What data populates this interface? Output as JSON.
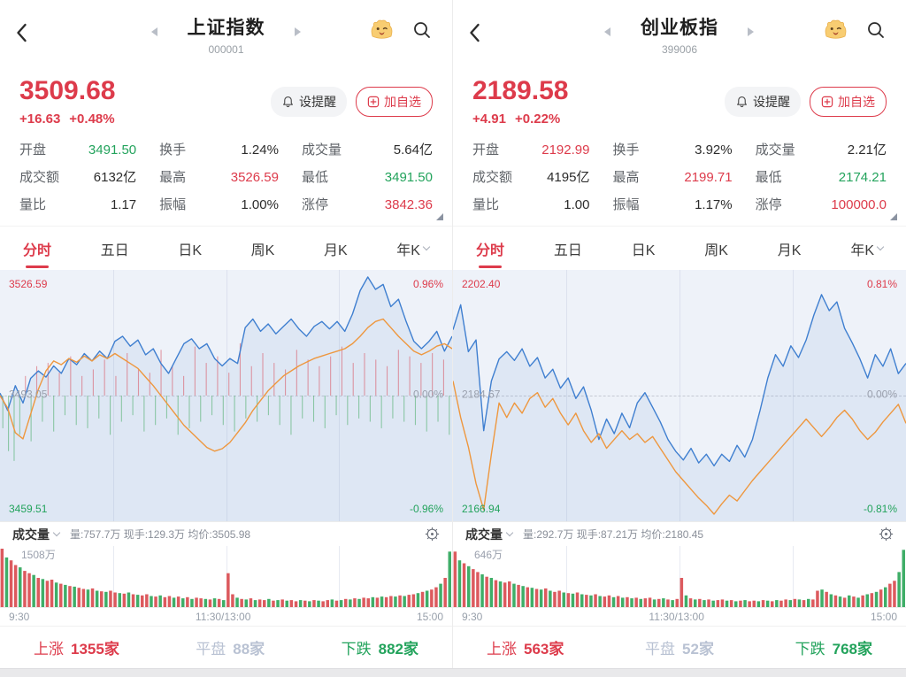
{
  "colors": {
    "red": "#dd3b4b",
    "green": "#23a35c",
    "blue": "#3f7fd0",
    "orange": "#ee973e",
    "flat": "#b9c2d3",
    "vol_red": "#dc5a5e",
    "vol_green": "#3fae68"
  },
  "panels": [
    {
      "title": "上证指数",
      "code": "000001",
      "price": "3509.68",
      "change": "+16.63",
      "change_pct": "+0.48%",
      "alert_label": "设提醒",
      "watch_label": "加自选",
      "stats": [
        {
          "label": "开盘",
          "value": "3491.50",
          "color": "green"
        },
        {
          "label": "换手",
          "value": "1.24%",
          "color": "dark"
        },
        {
          "label": "成交量",
          "value": "5.64亿",
          "color": "dark"
        },
        {
          "label": "成交额",
          "value": "6132亿",
          "color": "dark"
        },
        {
          "label": "最高",
          "value": "3526.59",
          "color": "red"
        },
        {
          "label": "最低",
          "value": "3491.50",
          "color": "green"
        },
        {
          "label": "量比",
          "value": "1.17",
          "color": "dark"
        },
        {
          "label": "振幅",
          "value": "1.00%",
          "color": "dark"
        },
        {
          "label": "涨停",
          "value": "3842.36",
          "color": "red"
        }
      ],
      "tabs": [
        "分时",
        "五日",
        "日K",
        "周K",
        "月K",
        "年K"
      ],
      "active_tab": 0,
      "chart": {
        "type": "line",
        "high_label": "3526.59",
        "high_pct": "0.96%",
        "mid_label": "3493.05",
        "mid_pct": "0.00%",
        "low_label": "3459.51",
        "low_pct": "-0.96%",
        "range_pct": 0.96,
        "price_line": [
          0.02,
          -0.12,
          0.08,
          -0.06,
          0.14,
          0.2,
          0.15,
          0.24,
          0.18,
          0.3,
          0.25,
          0.34,
          0.28,
          0.36,
          0.3,
          0.44,
          0.48,
          0.4,
          0.45,
          0.33,
          0.38,
          0.26,
          0.18,
          0.3,
          0.42,
          0.46,
          0.38,
          0.42,
          0.3,
          0.24,
          0.3,
          0.26,
          0.55,
          0.62,
          0.52,
          0.58,
          0.5,
          0.56,
          0.62,
          0.54,
          0.48,
          0.56,
          0.6,
          0.54,
          0.6,
          0.52,
          0.66,
          0.85,
          0.96,
          0.86,
          0.9,
          0.72,
          0.78,
          0.6,
          0.44,
          0.38,
          0.44,
          0.52,
          0.36,
          0.48
        ],
        "avg_line": [
          0.0,
          -0.1,
          -0.3,
          -0.35,
          -0.15,
          0.05,
          0.2,
          0.28,
          0.25,
          0.3,
          0.27,
          0.32,
          0.28,
          0.33,
          0.3,
          0.34,
          0.3,
          0.26,
          0.22,
          0.15,
          0.08,
          0.0,
          -0.08,
          -0.16,
          -0.24,
          -0.3,
          -0.36,
          -0.42,
          -0.45,
          -0.43,
          -0.38,
          -0.3,
          -0.22,
          -0.12,
          -0.04,
          0.04,
          0.1,
          0.16,
          0.2,
          0.24,
          0.27,
          0.3,
          0.32,
          0.34,
          0.36,
          0.38,
          0.42,
          0.48,
          0.55,
          0.6,
          0.62,
          0.55,
          0.48,
          0.42,
          0.36,
          0.33,
          0.36,
          0.4,
          0.42,
          0.38
        ],
        "ticks": [
          -0.5,
          -0.85,
          -1.0,
          -0.6,
          0.3,
          -0.7,
          0.45,
          -0.4,
          0.5,
          -0.55,
          0.35,
          -0.3,
          0.6,
          -0.45,
          0.3,
          -0.5,
          0.4,
          -0.35,
          0.55,
          -0.6,
          0.3,
          -0.4,
          0.65,
          -0.3,
          0.4,
          -0.55,
          0.35,
          -0.45,
          0.7,
          -0.35,
          0.45,
          -0.6,
          0.3,
          -0.5,
          0.75,
          -0.4,
          0.5,
          -0.3,
          0.6,
          -0.45,
          0.35,
          -0.55,
          0.8,
          -0.35,
          0.45,
          -0.4,
          0.65,
          -0.3,
          0.5,
          -0.45,
          0.4,
          -0.6,
          0.7,
          -0.35,
          0.55,
          -0.4,
          0.45,
          -0.5,
          0.6,
          -0.3,
          0.75,
          -0.45,
          0.5,
          -0.35,
          0.65,
          -0.4,
          0.55,
          -0.5,
          0.45,
          -0.35,
          0.7,
          -0.4,
          0.6,
          -0.45,
          0.5,
          -0.55,
          0.65,
          -0.4,
          0.55,
          -0.6
        ]
      },
      "volume": {
        "label": "成交量",
        "stats_text": "量:757.7万 现手:129.3万 均价:3505.98",
        "max_label": "1508万",
        "bars": [
          1.0,
          -0.85,
          0.8,
          0.72,
          -0.68,
          0.62,
          0.58,
          -0.55,
          0.5,
          -0.48,
          0.45,
          0.47,
          -0.42,
          0.4,
          -0.38,
          0.36,
          -0.35,
          0.33,
          0.31,
          -0.3,
          0.32,
          -0.28,
          0.27,
          -0.26,
          0.28,
          0.25,
          -0.24,
          0.23,
          -0.25,
          0.22,
          -0.21,
          0.2,
          0.22,
          -0.19,
          0.18,
          -0.2,
          0.17,
          0.19,
          -0.16,
          0.18,
          -0.15,
          0.17,
          -0.14,
          0.16,
          0.15,
          -0.14,
          0.13,
          -0.15,
          0.14,
          -0.12,
          0.58,
          0.22,
          -0.16,
          0.14,
          -0.13,
          0.15,
          -0.12,
          0.13,
          0.12,
          -0.14,
          0.11,
          -0.12,
          0.13,
          -0.11,
          0.12,
          0.1,
          -0.12,
          0.11,
          -0.1,
          0.12,
          -0.11,
          0.1,
          0.12,
          -0.13,
          0.11,
          -0.12,
          0.14,
          -0.13,
          0.15,
          -0.14,
          0.16,
          0.15,
          -0.17,
          0.16,
          -0.18,
          0.17,
          0.19,
          -0.18,
          0.2,
          -0.19,
          0.21,
          0.22,
          -0.24,
          0.26,
          -0.28,
          0.3,
          0.34,
          -0.4,
          0.5,
          -0.95
        ]
      },
      "time_axis": [
        "9:30",
        "11:30/13:00",
        "15:00"
      ],
      "breadth": {
        "up_label": "上涨",
        "up_count": "1355家",
        "flat_label": "平盘",
        "flat_count": "88家",
        "down_label": "下跌",
        "down_count": "882家"
      }
    },
    {
      "title": "创业板指",
      "code": "399006",
      "price": "2189.58",
      "change": "+4.91",
      "change_pct": "+0.22%",
      "alert_label": "设提醒",
      "watch_label": "加自选",
      "stats": [
        {
          "label": "开盘",
          "value": "2192.99",
          "color": "red"
        },
        {
          "label": "换手",
          "value": "3.92%",
          "color": "dark"
        },
        {
          "label": "成交量",
          "value": "2.21亿",
          "color": "dark"
        },
        {
          "label": "成交额",
          "value": "4195亿",
          "color": "dark"
        },
        {
          "label": "最高",
          "value": "2199.71",
          "color": "red"
        },
        {
          "label": "最低",
          "value": "2174.21",
          "color": "green"
        },
        {
          "label": "量比",
          "value": "1.00",
          "color": "dark"
        },
        {
          "label": "振幅",
          "value": "1.17%",
          "color": "dark"
        },
        {
          "label": "涨停",
          "value": "100000.0",
          "color": "red"
        }
      ],
      "tabs": [
        "分时",
        "五日",
        "日K",
        "周K",
        "月K",
        "年K"
      ],
      "active_tab": 0,
      "chart": {
        "type": "line",
        "high_label": "2202.40",
        "high_pct": "0.81%",
        "mid_label": "2184.67",
        "mid_pct": "0.00%",
        "low_label": "2166.94",
        "low_pct": "-0.81%",
        "range_pct": 0.81,
        "price_line": [
          0.45,
          0.62,
          0.3,
          0.38,
          -0.24,
          0.1,
          0.25,
          0.3,
          0.24,
          0.32,
          0.2,
          0.26,
          0.12,
          0.18,
          0.05,
          0.12,
          -0.02,
          0.06,
          -0.1,
          -0.3,
          -0.16,
          -0.26,
          -0.12,
          -0.22,
          -0.05,
          0.02,
          -0.08,
          -0.18,
          -0.3,
          -0.38,
          -0.44,
          -0.36,
          -0.46,
          -0.4,
          -0.48,
          -0.4,
          -0.45,
          -0.34,
          -0.42,
          -0.3,
          -0.1,
          0.12,
          0.28,
          0.2,
          0.34,
          0.26,
          0.38,
          0.55,
          0.69,
          0.58,
          0.64,
          0.46,
          0.36,
          0.25,
          0.12,
          0.28,
          0.2,
          0.32,
          0.15,
          0.22
        ],
        "avg_line": [
          0.1,
          -0.15,
          -0.35,
          -0.6,
          -0.78,
          -0.4,
          -0.05,
          -0.15,
          -0.05,
          -0.12,
          -0.02,
          0.02,
          -0.08,
          -0.02,
          -0.12,
          -0.2,
          -0.12,
          -0.24,
          -0.32,
          -0.26,
          -0.36,
          -0.3,
          -0.24,
          -0.3,
          -0.26,
          -0.32,
          -0.28,
          -0.36,
          -0.44,
          -0.52,
          -0.58,
          -0.64,
          -0.7,
          -0.75,
          -0.81,
          -0.74,
          -0.68,
          -0.72,
          -0.65,
          -0.58,
          -0.52,
          -0.46,
          -0.4,
          -0.34,
          -0.28,
          -0.22,
          -0.16,
          -0.22,
          -0.28,
          -0.22,
          -0.15,
          -0.1,
          -0.16,
          -0.24,
          -0.3,
          -0.25,
          -0.18,
          -0.12,
          -0.06,
          -0.19
        ],
        "ticks": []
      },
      "volume": {
        "label": "成交量",
        "stats_text": "量:292.7万 现手:87.21万 均价:2180.45",
        "max_label": "646万",
        "bars": [
          0.95,
          -0.8,
          0.75,
          -0.7,
          0.65,
          0.6,
          -0.56,
          0.52,
          -0.5,
          0.46,
          -0.44,
          0.42,
          0.44,
          -0.4,
          0.38,
          -0.36,
          0.34,
          -0.33,
          0.31,
          -0.3,
          0.32,
          -0.28,
          0.26,
          0.28,
          -0.25,
          0.24,
          -0.23,
          0.25,
          -0.22,
          0.21,
          -0.2,
          0.22,
          -0.19,
          0.18,
          0.2,
          -0.17,
          0.19,
          -0.16,
          0.17,
          -0.15,
          0.16,
          -0.14,
          0.15,
          0.16,
          -0.13,
          0.14,
          -0.15,
          0.13,
          -0.12,
          0.14,
          0.5,
          -0.2,
          0.15,
          -0.13,
          0.14,
          -0.12,
          0.13,
          -0.11,
          0.12,
          0.13,
          -0.11,
          0.12,
          -0.1,
          0.11,
          -0.12,
          0.1,
          0.11,
          -0.1,
          0.12,
          -0.11,
          0.1,
          -0.12,
          0.11,
          0.13,
          -0.12,
          0.14,
          -0.13,
          0.12,
          -0.14,
          0.13,
          0.28,
          -0.3,
          0.26,
          -0.22,
          0.2,
          -0.18,
          0.16,
          -0.2,
          0.18,
          -0.16,
          0.2,
          -0.22,
          0.24,
          -0.26,
          0.3,
          -0.34,
          0.4,
          0.45,
          -0.6,
          -0.98
        ]
      },
      "time_axis": [
        "9:30",
        "11:30/13:00",
        "15:00"
      ],
      "breadth": {
        "up_label": "上涨",
        "up_count": "563家",
        "flat_label": "平盘",
        "flat_count": "52家",
        "down_label": "下跌",
        "down_count": "768家"
      }
    }
  ]
}
